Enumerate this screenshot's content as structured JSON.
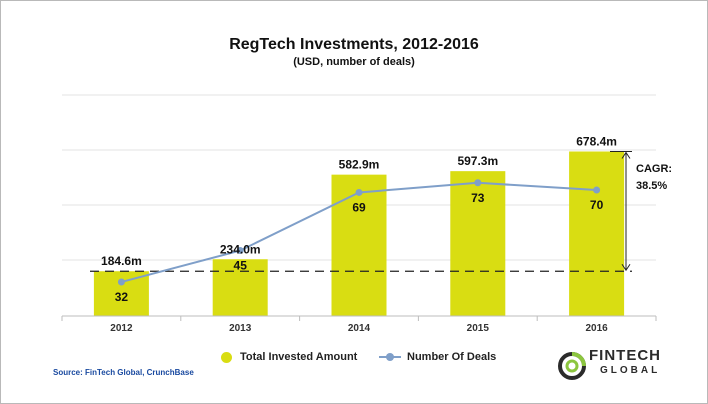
{
  "chart_data": {
    "type": "bar",
    "title": "RegTech Investments, 2012-2016",
    "subtitle": "(USD, number of deals)",
    "categories": [
      "2012",
      "2013",
      "2014",
      "2015",
      "2016"
    ],
    "series": [
      {
        "name": "Total Invested Amount",
        "type": "bar",
        "values": [
          184.6,
          234.0,
          582.9,
          597.3,
          678.4
        ],
        "labels": [
          "184.6m",
          "234.0m",
          "582.9m",
          "597.3m",
          "678.4m"
        ],
        "color": "#d9dd12"
      },
      {
        "name": "Number Of Deals",
        "type": "line",
        "values": [
          32,
          45,
          69,
          73,
          70
        ],
        "labels": [
          "32",
          "45",
          "69",
          "73",
          "70"
        ],
        "color": "#7f9fc9"
      }
    ],
    "annotation": {
      "text_line1": "CAGR:",
      "text_line2": "38.5%"
    },
    "grid": true,
    "legend_position": "bottom"
  },
  "footer": {
    "source": "Source: FinTech Global, CrunchBase",
    "logo_line1": "FINTECH",
    "logo_line2": "GLOBAL"
  }
}
